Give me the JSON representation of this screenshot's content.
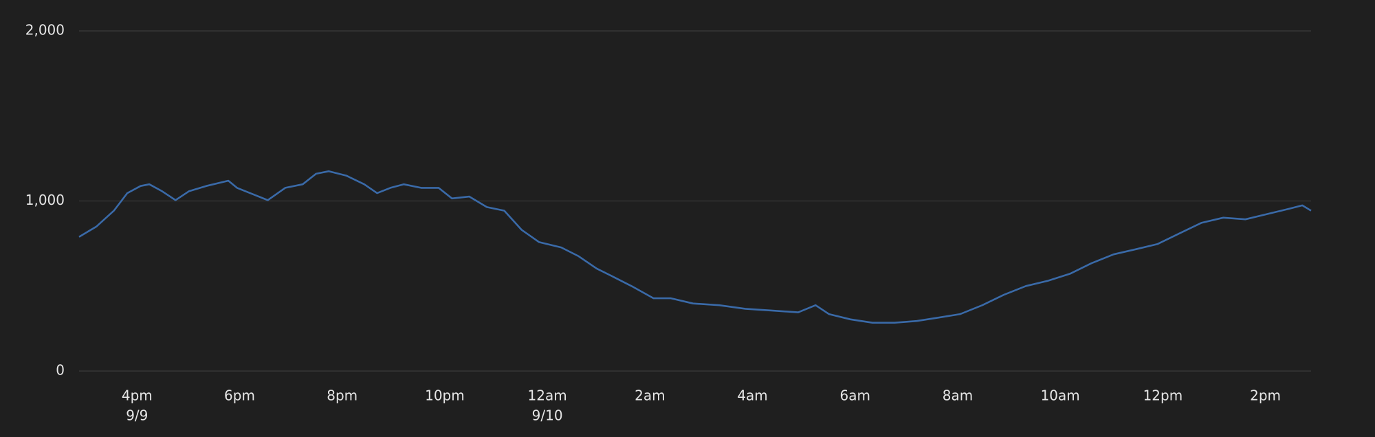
{
  "chart_data": {
    "type": "line",
    "color": "#3a6aa8",
    "grid": true,
    "x": [
      14.87,
      15.21,
      15.55,
      15.81,
      16.07,
      16.24,
      16.49,
      16.75,
      17.01,
      17.35,
      17.78,
      17.95,
      18.29,
      18.55,
      18.89,
      19.23,
      19.49,
      19.74,
      20.08,
      20.43,
      20.68,
      20.94,
      21.2,
      21.54,
      21.88,
      22.14,
      22.48,
      22.82,
      23.16,
      23.5,
      23.84,
      24.27,
      24.61,
      24.96,
      25.3,
      25.64,
      26.07,
      26.41,
      26.84,
      27.35,
      27.86,
      28.37,
      28.89,
      29.23,
      29.49,
      29.91,
      30.34,
      30.77,
      31.2,
      31.62,
      32.05,
      32.48,
      32.9,
      33.33,
      33.76,
      34.19,
      34.61,
      35.04,
      35.47,
      35.9,
      36.32,
      36.75,
      37.18,
      37.61,
      38.03,
      38.46,
      38.72,
      38.89
    ],
    "values": [
      789,
      850,
      943,
      1046,
      1088,
      1098,
      1057,
      1005,
      1057,
      1088,
      1119,
      1077,
      1036,
      1005,
      1077,
      1098,
      1160,
      1175,
      1149,
      1098,
      1046,
      1077,
      1098,
      1077,
      1077,
      1015,
      1026,
      964,
      943,
      830,
      758,
      727,
      675,
      603,
      552,
      500,
      428,
      428,
      397,
      387,
      366,
      356,
      345,
      387,
      335,
      304,
      284,
      284,
      294,
      314,
      335,
      387,
      448,
      500,
      531,
      572,
      634,
      686,
      716,
      747,
      809,
      871,
      902,
      892,
      923,
      954,
      974,
      943
    ],
    "xlim": [
      14.87,
      38.89
    ],
    "xticks": [
      {
        "value": 16,
        "label": "4pm",
        "date": "9/9"
      },
      {
        "value": 18,
        "label": "6pm"
      },
      {
        "value": 20,
        "label": "8pm"
      },
      {
        "value": 22,
        "label": "10pm"
      },
      {
        "value": 24,
        "label": "12am",
        "date": "9/10"
      },
      {
        "value": 26,
        "label": "2am"
      },
      {
        "value": 28,
        "label": "4am"
      },
      {
        "value": 30,
        "label": "6am"
      },
      {
        "value": 32,
        "label": "8am"
      },
      {
        "value": 34,
        "label": "10am"
      },
      {
        "value": 36,
        "label": "12pm"
      },
      {
        "value": 38,
        "label": "2pm"
      }
    ],
    "ylim": [
      0,
      2000
    ],
    "yticks": [
      0,
      {
        "value": 1000,
        "label": "1,000"
      },
      {
        "value": 2000,
        "label": "2,000"
      }
    ]
  }
}
